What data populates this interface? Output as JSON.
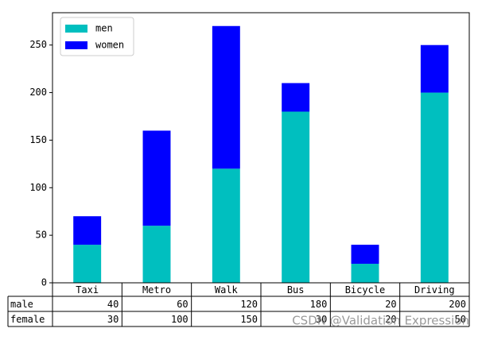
{
  "chart_data": {
    "type": "bar",
    "stacked": true,
    "categories": [
      "Taxi",
      "Metro",
      "Walk",
      "Bus",
      "Bicycle",
      "Driving"
    ],
    "series": [
      {
        "name": "men",
        "color": "#00bfbf",
        "values": [
          40,
          60,
          120,
          180,
          20,
          200
        ]
      },
      {
        "name": "women",
        "color": "#0000ff",
        "values": [
          30,
          100,
          150,
          30,
          20,
          50
        ]
      }
    ],
    "table_row_labels": [
      "male",
      "female"
    ],
    "ylim": [
      0,
      284
    ],
    "yticks": [
      0,
      50,
      100,
      150,
      200,
      250
    ],
    "legend": "upper-left",
    "watermark": "CSDN @Validation Expression"
  }
}
